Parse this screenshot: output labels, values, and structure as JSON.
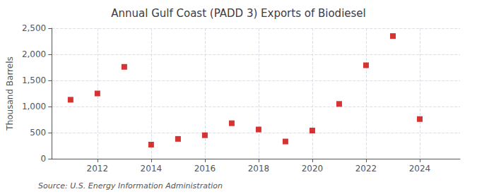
{
  "chart_data": {
    "type": "scatter",
    "title": "Annual Gulf Coast (PADD 3) Exports of Biodiesel",
    "ylabel": "Thousand Barrels",
    "annotations": [
      "Source: U.S. Energy Information Administration"
    ],
    "x": [
      2011,
      2012,
      2013,
      2014,
      2015,
      2016,
      2017,
      2018,
      2019,
      2020,
      2021,
      2022,
      2023,
      2024
    ],
    "values": [
      1130,
      1250,
      1760,
      270,
      380,
      450,
      680,
      560,
      330,
      540,
      1050,
      1790,
      2350,
      760
    ],
    "color": "#cc0000",
    "marker": "square",
    "xlim": [
      2010.3,
      2025.5
    ],
    "xticks": [
      2012,
      2014,
      2016,
      2018,
      2020,
      2022,
      2024
    ],
    "ylim": [
      0,
      2500
    ],
    "yticks": [
      0,
      500,
      {
        "value": 1000,
        "label": "1,000"
      },
      {
        "value": 1500,
        "label": "1,500"
      },
      {
        "value": 2000,
        "label": "2,000"
      },
      {
        "value": 2500,
        "label": "2,500"
      }
    ],
    "grid": true
  }
}
